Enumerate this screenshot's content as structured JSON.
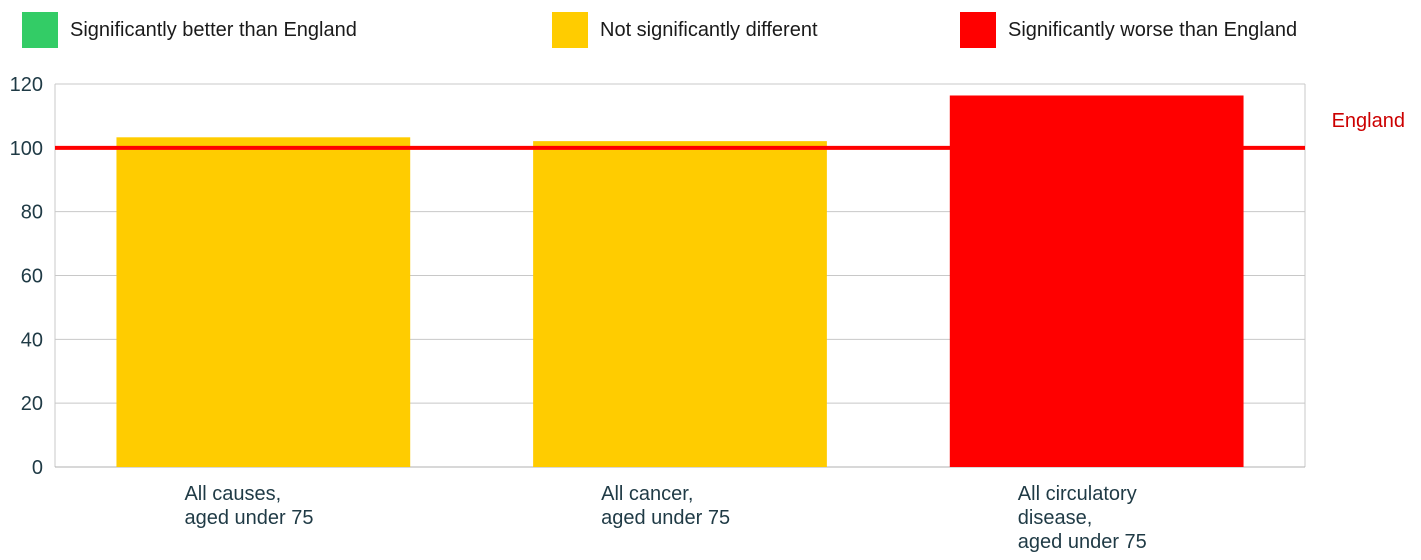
{
  "legend": [
    {
      "label": "Significantly better than England",
      "color": "#33cc66"
    },
    {
      "label": "Not significantly different",
      "color": "#ffcc00"
    },
    {
      "label": "Significantly worse than England",
      "color": "#ff0000"
    }
  ],
  "chart_data": {
    "type": "bar",
    "categories": [
      [
        "All causes,",
        "aged under 75"
      ],
      [
        "All cancer,",
        "aged under 75"
      ],
      [
        "All circulatory",
        "disease,",
        "aged under 75"
      ]
    ],
    "values": [
      103.3,
      102.1,
      116.4
    ],
    "bar_colors": [
      "#ffcc00",
      "#ffcc00",
      "#ff0000"
    ],
    "ylim": [
      0,
      120
    ],
    "yticks": [
      0,
      20,
      40,
      60,
      80,
      100,
      120
    ],
    "grid": true,
    "reference_line": {
      "label": "England",
      "value": 100,
      "color": "#ff0000",
      "label_color": "#cc0000"
    }
  }
}
